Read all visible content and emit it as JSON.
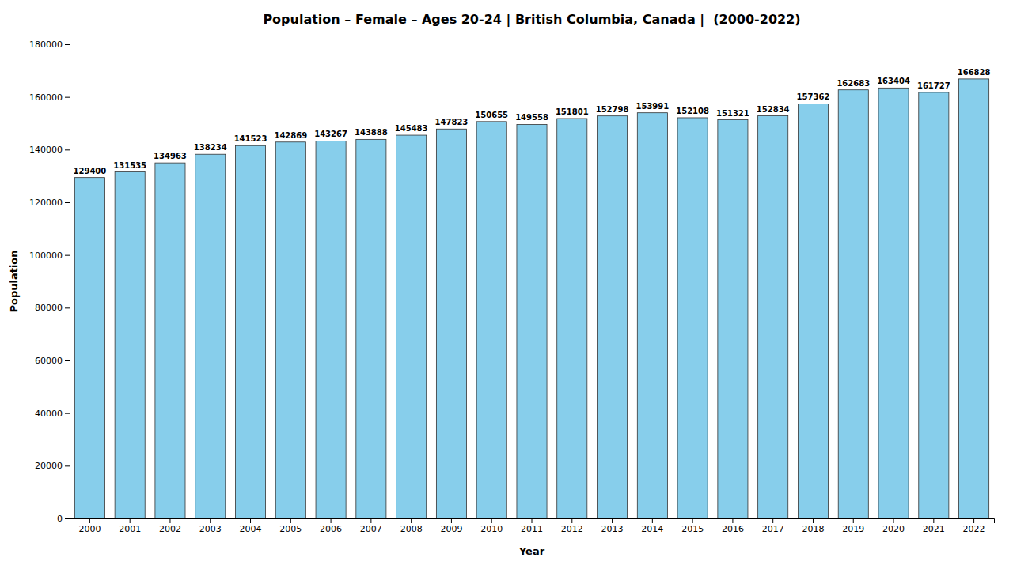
{
  "chart_data": {
    "type": "bar",
    "title": "Population – Female – Ages 20-24 | British Columbia, Canada |  (2000-2022)",
    "xlabel": "Year",
    "ylabel": "Population",
    "categories": [
      "2000",
      "2001",
      "2002",
      "2003",
      "2004",
      "2005",
      "2006",
      "2007",
      "2008",
      "2009",
      "2010",
      "2011",
      "2012",
      "2013",
      "2014",
      "2015",
      "2016",
      "2017",
      "2018",
      "2019",
      "2020",
      "2021",
      "2022"
    ],
    "values": [
      129400,
      131535,
      134963,
      138234,
      141523,
      142869,
      143267,
      143888,
      145483,
      147823,
      150655,
      149558,
      151801,
      152798,
      153991,
      152108,
      151321,
      152834,
      157362,
      162683,
      163404,
      161727,
      166828
    ],
    "color": "#87CEEB",
    "ylim": [
      0,
      180000
    ],
    "yticks": [
      0,
      20000,
      40000,
      60000,
      80000,
      100000,
      120000,
      140000,
      160000,
      180000
    ],
    "grid": false,
    "data_labels": true
  }
}
